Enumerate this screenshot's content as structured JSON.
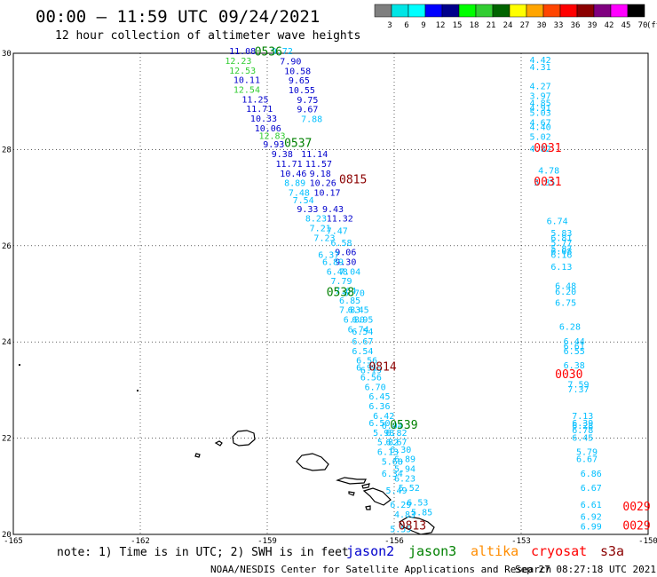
{
  "header": {
    "title": "00:00 – 11:59 UTC 09/24/2021",
    "subtitle": "12 hour collection of altimeter wave heights"
  },
  "colorbar": {
    "unit": "(ft)",
    "labels": [
      "3",
      "6",
      "9",
      "12",
      "15",
      "18",
      "21",
      "24",
      "27",
      "30",
      "33",
      "36",
      "39",
      "42",
      "45",
      "70"
    ],
    "colors": [
      "#7f7f7f",
      "#00e5e5",
      "#00ffff",
      "#0000ff",
      "#00008b",
      "#00ff00",
      "#32cd32",
      "#006400",
      "#ffff00",
      "#ffa500",
      "#ff4500",
      "#ff0000",
      "#8b0000",
      "#800080",
      "#ff00ff",
      "#000000"
    ]
  },
  "chart_data": {
    "type": "map",
    "lon_range": [
      -165,
      -150
    ],
    "lat_range": [
      20,
      30
    ],
    "x_tick_labels": [
      "-165",
      "-162",
      "-159",
      "-156",
      "-153",
      "-150"
    ],
    "y_tick_labels": [
      "20",
      "22",
      "24",
      "26",
      "28",
      "30"
    ],
    "grid": "dotted",
    "satellite_colors": {
      "jason2": "#0000cd",
      "jason3": "#008000",
      "altika": "#ff8c00",
      "cryosat": "#ff0000",
      "s3a": "#8b0000"
    },
    "track_labels": [
      {
        "text": "0536",
        "lon": -159.3,
        "lat": 29.95,
        "sat": "jason3"
      },
      {
        "text": "0537",
        "lon": -158.6,
        "lat": 28.05,
        "sat": "jason3"
      },
      {
        "text": "0538",
        "lon": -157.6,
        "lat": 24.95,
        "sat": "jason3"
      },
      {
        "text": "0539",
        "lon": -156.1,
        "lat": 22.2,
        "sat": "jason3"
      },
      {
        "text": "0815",
        "lon": -157.3,
        "lat": 27.3,
        "sat": "s3a"
      },
      {
        "text": "0814",
        "lon": -156.6,
        "lat": 23.4,
        "sat": "s3a"
      },
      {
        "text": "0813",
        "lon": -155.9,
        "lat": 20.1,
        "sat": "s3a"
      },
      {
        "text": "0031",
        "lon": -152.7,
        "lat": 27.95,
        "sat": "cryosat"
      },
      {
        "text": "0031",
        "lon": -152.7,
        "lat": 27.25,
        "sat": "cryosat"
      },
      {
        "text": "0030",
        "lon": -152.2,
        "lat": 23.25,
        "sat": "cryosat"
      },
      {
        "text": "0029",
        "lon": -150.6,
        "lat": 20.5,
        "sat": "cryosat"
      },
      {
        "text": "0029",
        "lon": -150.6,
        "lat": 20.1,
        "sat": "cryosat"
      }
    ],
    "points": [
      {
        "t": "11.08",
        "lon": -159.9,
        "lat": 29.98,
        "c": "#0000cd"
      },
      {
        "t": "9.72",
        "lon": -158.9,
        "lat": 29.98,
        "c": "#00bfff"
      },
      {
        "t": "12.23",
        "lon": -160.0,
        "lat": 29.78,
        "c": "#32cd32"
      },
      {
        "t": "7.90",
        "lon": -158.7,
        "lat": 29.77,
        "c": "#0000cd"
      },
      {
        "t": "12.53",
        "lon": -159.9,
        "lat": 29.58,
        "c": "#32cd32"
      },
      {
        "t": "10.58",
        "lon": -158.6,
        "lat": 29.57,
        "c": "#0000cd"
      },
      {
        "t": "10.11",
        "lon": -159.8,
        "lat": 29.38,
        "c": "#0000cd"
      },
      {
        "t": "9.65",
        "lon": -158.5,
        "lat": 29.37,
        "c": "#0000cd"
      },
      {
        "t": "12.54",
        "lon": -159.8,
        "lat": 29.18,
        "c": "#32cd32"
      },
      {
        "t": "11.25",
        "lon": -159.6,
        "lat": 28.98,
        "c": "#0000cd"
      },
      {
        "t": "10.55",
        "lon": -158.5,
        "lat": 29.17,
        "c": "#0000cd"
      },
      {
        "t": "11.71",
        "lon": -159.5,
        "lat": 28.78,
        "c": "#0000cd"
      },
      {
        "t": "9.75",
        "lon": -158.3,
        "lat": 28.97,
        "c": "#0000cd"
      },
      {
        "t": "10.33",
        "lon": -159.4,
        "lat": 28.58,
        "c": "#0000cd"
      },
      {
        "t": "9.67",
        "lon": -158.3,
        "lat": 28.77,
        "c": "#0000cd"
      },
      {
        "t": "10.06",
        "lon": -159.3,
        "lat": 28.38,
        "c": "#0000cd"
      },
      {
        "t": "7.88",
        "lon": -158.2,
        "lat": 28.57,
        "c": "#00bfff"
      },
      {
        "t": "12.83",
        "lon": -159.2,
        "lat": 28.22,
        "c": "#32cd32"
      },
      {
        "t": "9.93",
        "lon": -159.1,
        "lat": 28.04,
        "c": "#0000cd"
      },
      {
        "t": "9.38",
        "lon": -158.9,
        "lat": 27.84,
        "c": "#0000cd"
      },
      {
        "t": "11.14",
        "lon": -158.2,
        "lat": 27.84,
        "c": "#0000cd"
      },
      {
        "t": "11.71",
        "lon": -158.8,
        "lat": 27.64,
        "c": "#0000cd"
      },
      {
        "t": "11.57",
        "lon": -158.1,
        "lat": 27.64,
        "c": "#0000cd"
      },
      {
        "t": "10.46",
        "lon": -158.7,
        "lat": 27.44,
        "c": "#0000cd"
      },
      {
        "t": "9.18",
        "lon": -158.0,
        "lat": 27.44,
        "c": "#0000cd"
      },
      {
        "t": "8.89",
        "lon": -158.6,
        "lat": 27.24,
        "c": "#00bfff"
      },
      {
        "t": "10.26",
        "lon": -158.0,
        "lat": 27.24,
        "c": "#0000cd"
      },
      {
        "t": "7.48",
        "lon": -158.5,
        "lat": 27.04,
        "c": "#00bfff"
      },
      {
        "t": "10.17",
        "lon": -157.9,
        "lat": 27.04,
        "c": "#0000cd"
      },
      {
        "t": "7.54",
        "lon": -158.4,
        "lat": 26.88,
        "c": "#00bfff"
      },
      {
        "t": "9.33",
        "lon": -158.3,
        "lat": 26.7,
        "c": "#0000cd"
      },
      {
        "t": "9.43",
        "lon": -157.7,
        "lat": 26.7,
        "c": "#0000cd"
      },
      {
        "t": "8.23",
        "lon": -158.1,
        "lat": 26.5,
        "c": "#00bfff"
      },
      {
        "t": "11.32",
        "lon": -157.6,
        "lat": 26.5,
        "c": "#0000cd"
      },
      {
        "t": "7.21",
        "lon": -158.0,
        "lat": 26.3,
        "c": "#00bfff"
      },
      {
        "t": "7.47",
        "lon": -157.6,
        "lat": 26.25,
        "c": "#00bfff"
      },
      {
        "t": "7.23",
        "lon": -157.9,
        "lat": 26.1,
        "c": "#00bfff"
      },
      {
        "t": "6.58",
        "lon": -157.5,
        "lat": 26.0,
        "c": "#00bfff"
      },
      {
        "t": "9.06",
        "lon": -157.4,
        "lat": 25.8,
        "c": "#0000cd"
      },
      {
        "t": "6.37",
        "lon": -157.8,
        "lat": 25.75,
        "c": "#00bfff"
      },
      {
        "t": "9.30",
        "lon": -157.4,
        "lat": 25.6,
        "c": "#0000cd"
      },
      {
        "t": "6.89",
        "lon": -157.7,
        "lat": 25.6,
        "c": "#00bfff"
      },
      {
        "t": "6.48",
        "lon": -157.6,
        "lat": 25.4,
        "c": "#00bfff"
      },
      {
        "t": "7.04",
        "lon": -157.3,
        "lat": 25.4,
        "c": "#00bfff"
      },
      {
        "t": "7.79",
        "lon": -157.5,
        "lat": 25.2,
        "c": "#00bfff"
      },
      {
        "t": "7.64",
        "lon": -157.4,
        "lat": 25.0,
        "c": "#00bfff"
      },
      {
        "t": "6.70",
        "lon": -157.2,
        "lat": 24.95,
        "c": "#00bfff"
      },
      {
        "t": "6.85",
        "lon": -157.3,
        "lat": 24.8,
        "c": "#00bfff"
      },
      {
        "t": "7.83",
        "lon": -157.3,
        "lat": 24.6,
        "c": "#00bfff"
      },
      {
        "t": "6.45",
        "lon": -157.1,
        "lat": 24.6,
        "c": "#00bfff"
      },
      {
        "t": "6.80",
        "lon": -157.2,
        "lat": 24.4,
        "c": "#00bfff"
      },
      {
        "t": "6.95",
        "lon": -157.0,
        "lat": 24.4,
        "c": "#00bfff"
      },
      {
        "t": "6.74",
        "lon": -157.1,
        "lat": 24.2,
        "c": "#00bfff"
      },
      {
        "t": "6.54",
        "lon": -157.0,
        "lat": 24.15,
        "c": "#00bfff"
      },
      {
        "t": "6.67",
        "lon": -157.0,
        "lat": 23.95,
        "c": "#00bfff"
      },
      {
        "t": "6.54",
        "lon": -157.0,
        "lat": 23.75,
        "c": "#00bfff"
      },
      {
        "t": "6.56",
        "lon": -156.9,
        "lat": 23.55,
        "c": "#00bfff"
      },
      {
        "t": "6.91",
        "lon": -156.9,
        "lat": 23.4,
        "c": "#00bfff"
      },
      {
        "t": "6.19",
        "lon": -156.8,
        "lat": 23.35,
        "c": "#00bfff"
      },
      {
        "t": "6.56",
        "lon": -156.8,
        "lat": 23.2,
        "c": "#00bfff"
      },
      {
        "t": "6.70",
        "lon": -156.7,
        "lat": 23.0,
        "c": "#00bfff"
      },
      {
        "t": "6.45",
        "lon": -156.6,
        "lat": 22.8,
        "c": "#00bfff"
      },
      {
        "t": "6.36",
        "lon": -156.6,
        "lat": 22.6,
        "c": "#00bfff"
      },
      {
        "t": "6.42",
        "lon": -156.5,
        "lat": 22.4,
        "c": "#00bfff"
      },
      {
        "t": "6.50",
        "lon": -156.6,
        "lat": 22.25,
        "c": "#00bfff"
      },
      {
        "t": "6.04",
        "lon": -156.3,
        "lat": 22.2,
        "c": "#00bfff"
      },
      {
        "t": "5.98",
        "lon": -156.5,
        "lat": 22.05,
        "c": "#00bfff"
      },
      {
        "t": "6.82",
        "lon": -156.2,
        "lat": 22.05,
        "c": "#00bfff"
      },
      {
        "t": "5.82",
        "lon": -156.4,
        "lat": 21.85,
        "c": "#00bfff"
      },
      {
        "t": "6.67",
        "lon": -156.2,
        "lat": 21.85,
        "c": "#00bfff"
      },
      {
        "t": "6.13",
        "lon": -156.4,
        "lat": 21.65,
        "c": "#00bfff"
      },
      {
        "t": "6.30",
        "lon": -156.1,
        "lat": 21.7,
        "c": "#00bfff"
      },
      {
        "t": "6.89",
        "lon": -156.0,
        "lat": 21.5,
        "c": "#00bfff"
      },
      {
        "t": "5.68",
        "lon": -156.3,
        "lat": 21.45,
        "c": "#00bfff"
      },
      {
        "t": "5.94",
        "lon": -156.0,
        "lat": 21.3,
        "c": "#00bfff"
      },
      {
        "t": "6.34",
        "lon": -156.3,
        "lat": 21.2,
        "c": "#00bfff"
      },
      {
        "t": "6.23",
        "lon": -156.0,
        "lat": 21.1,
        "c": "#00bfff"
      },
      {
        "t": "5.52",
        "lon": -155.9,
        "lat": 20.9,
        "c": "#00bfff"
      },
      {
        "t": "5.49",
        "lon": -156.2,
        "lat": 20.85,
        "c": "#00bfff"
      },
      {
        "t": "6.53",
        "lon": -155.7,
        "lat": 20.6,
        "c": "#00bfff"
      },
      {
        "t": "6.29",
        "lon": -156.1,
        "lat": 20.55,
        "c": "#00bfff"
      },
      {
        "t": "5.85",
        "lon": -155.6,
        "lat": 20.4,
        "c": "#00bfff"
      },
      {
        "t": "4.83",
        "lon": -156.0,
        "lat": 20.35,
        "c": "#00bfff"
      },
      {
        "t": "5.55",
        "lon": -156.1,
        "lat": 20.05,
        "c": "#00bfff"
      },
      {
        "t": "4.42",
        "lon": -152.8,
        "lat": 29.8,
        "c": "#00bfff"
      },
      {
        "t": "4.31",
        "lon": -152.8,
        "lat": 29.65,
        "c": "#00bfff"
      },
      {
        "t": "4.27",
        "lon": -152.8,
        "lat": 29.25,
        "c": "#00bfff"
      },
      {
        "t": "3.97",
        "lon": -152.8,
        "lat": 29.05,
        "c": "#00bfff"
      },
      {
        "t": "4.85",
        "lon": -152.8,
        "lat": 28.9,
        "c": "#00bfff"
      },
      {
        "t": "4.91",
        "lon": -152.8,
        "lat": 28.8,
        "c": "#00bfff"
      },
      {
        "t": "5.03",
        "lon": -152.8,
        "lat": 28.7,
        "c": "#00bfff"
      },
      {
        "t": "4.67",
        "lon": -152.8,
        "lat": 28.5,
        "c": "#00bfff"
      },
      {
        "t": "4.40",
        "lon": -152.8,
        "lat": 28.4,
        "c": "#00bfff"
      },
      {
        "t": "5.02",
        "lon": -152.8,
        "lat": 28.2,
        "c": "#00bfff"
      },
      {
        "t": "4.82",
        "lon": -152.8,
        "lat": 27.95,
        "c": "#00bfff"
      },
      {
        "t": "4.78",
        "lon": -152.6,
        "lat": 27.5,
        "c": "#00bfff"
      },
      {
        "t": "5.85",
        "lon": -152.7,
        "lat": 27.25,
        "c": "#00bfff"
      },
      {
        "t": "6.74",
        "lon": -152.4,
        "lat": 26.45,
        "c": "#00bfff"
      },
      {
        "t": "5.83",
        "lon": -152.3,
        "lat": 26.2,
        "c": "#00bfff"
      },
      {
        "t": "6.81",
        "lon": -152.3,
        "lat": 26.1,
        "c": "#00bfff"
      },
      {
        "t": "5.77",
        "lon": -152.3,
        "lat": 26.0,
        "c": "#00bfff"
      },
      {
        "t": "5.87",
        "lon": -152.3,
        "lat": 25.88,
        "c": "#00bfff"
      },
      {
        "t": "6.08",
        "lon": -152.3,
        "lat": 25.82,
        "c": "#00bfff"
      },
      {
        "t": "6.16",
        "lon": -152.3,
        "lat": 25.75,
        "c": "#00bfff"
      },
      {
        "t": "6.13",
        "lon": -152.3,
        "lat": 25.5,
        "c": "#00bfff"
      },
      {
        "t": "6.48",
        "lon": -152.2,
        "lat": 25.1,
        "c": "#00bfff"
      },
      {
        "t": "6.20",
        "lon": -152.2,
        "lat": 24.98,
        "c": "#00bfff"
      },
      {
        "t": "6.75",
        "lon": -152.2,
        "lat": 24.75,
        "c": "#00bfff"
      },
      {
        "t": "6.28",
        "lon": -152.1,
        "lat": 24.25,
        "c": "#00bfff"
      },
      {
        "t": "6.44",
        "lon": -152.0,
        "lat": 23.95,
        "c": "#00bfff"
      },
      {
        "t": "6.61",
        "lon": -152.0,
        "lat": 23.85,
        "c": "#00bfff"
      },
      {
        "t": "6.55",
        "lon": -152.0,
        "lat": 23.75,
        "c": "#00bfff"
      },
      {
        "t": "6.38",
        "lon": -152.0,
        "lat": 23.45,
        "c": "#00bfff"
      },
      {
        "t": "7.59",
        "lon": -151.9,
        "lat": 23.05,
        "c": "#00bfff"
      },
      {
        "t": "7.37",
        "lon": -151.9,
        "lat": 22.95,
        "c": "#00bfff"
      },
      {
        "t": "7.13",
        "lon": -151.8,
        "lat": 22.4,
        "c": "#00bfff"
      },
      {
        "t": "6.39",
        "lon": -151.8,
        "lat": 22.25,
        "c": "#00bfff"
      },
      {
        "t": "6.28",
        "lon": -151.8,
        "lat": 22.2,
        "c": "#00bfff"
      },
      {
        "t": "6.78",
        "lon": -151.8,
        "lat": 22.1,
        "c": "#00bfff"
      },
      {
        "t": "6.45",
        "lon": -151.8,
        "lat": 21.95,
        "c": "#00bfff"
      },
      {
        "t": "5.79",
        "lon": -151.7,
        "lat": 21.65,
        "c": "#00bfff"
      },
      {
        "t": "6.67",
        "lon": -151.7,
        "lat": 21.5,
        "c": "#00bfff"
      },
      {
        "t": "6.86",
        "lon": -151.6,
        "lat": 21.2,
        "c": "#00bfff"
      },
      {
        "t": "6.67",
        "lon": -151.6,
        "lat": 20.9,
        "c": "#00bfff"
      },
      {
        "t": "6.61",
        "lon": -151.6,
        "lat": 20.55,
        "c": "#00bfff"
      },
      {
        "t": "6.92",
        "lon": -151.6,
        "lat": 20.3,
        "c": "#00bfff"
      },
      {
        "t": "6.99",
        "lon": -151.6,
        "lat": 20.1,
        "c": "#00bfff"
      }
    ]
  },
  "footer": {
    "note": "note: 1) Time is in UTC; 2) SWH is in feet",
    "legend": [
      {
        "name": "jason2",
        "color": "#0000cd"
      },
      {
        "name": "jason3",
        "color": "#008000"
      },
      {
        "name": "altika",
        "color": "#ff8c00"
      },
      {
        "name": "cryosat",
        "color": "#ff0000"
      },
      {
        "name": "s3a",
        "color": "#8b0000"
      }
    ],
    "credit": "NOAA/NESDIS Center for Satellite Applications and Research",
    "timestamp": "Sep 27 08:27:18 UTC 2021"
  }
}
